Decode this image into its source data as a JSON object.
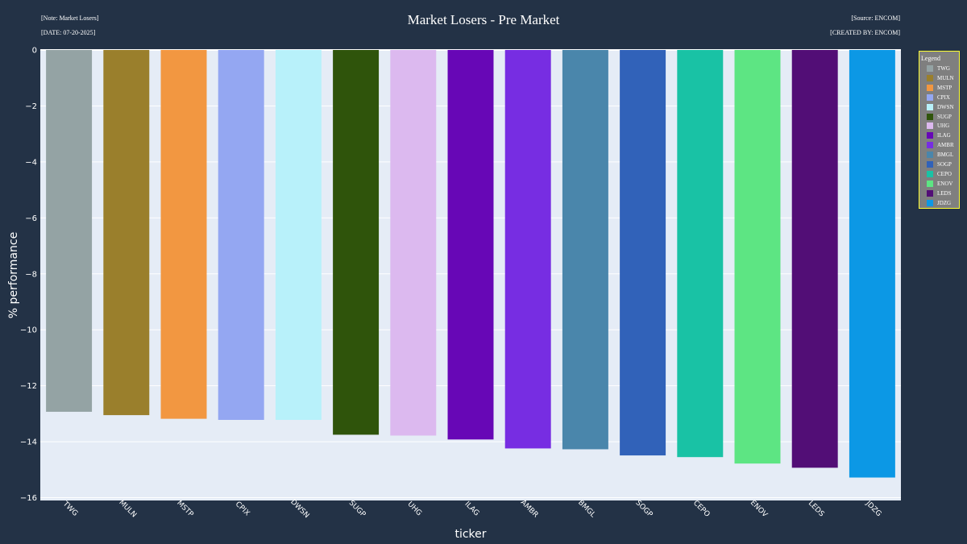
{
  "notes": {
    "top_left": "[Note: Market Losers]",
    "bottom_left": "[DATE: 07-20-2025]",
    "top_right": "[Source: ENCOM]",
    "bottom_right": "[CREATED BY: ENCOM]"
  },
  "legend": {
    "title": "Legend"
  },
  "colors": {
    "background": "#233246",
    "plot_background": "#e5ecf6",
    "legend_background": "#7f7f7f",
    "legend_border": "#ffff33"
  },
  "chart_data": {
    "type": "bar",
    "title": "Market Losers - Pre Market",
    "xlabel": "ticker",
    "ylabel": "% performance",
    "ylim": [
      -16.1,
      0
    ],
    "yticks": [
      0,
      -2,
      -4,
      -6,
      -8,
      -10,
      -12,
      -14,
      -16
    ],
    "grid": true,
    "legend_position": "right",
    "categories": [
      "TWG",
      "MULN",
      "MSTP",
      "CPIX",
      "DWSN",
      "SUGP",
      "UHG",
      "ILAG",
      "AMBR",
      "BMGL",
      "SOGP",
      "CEPO",
      "ENOV",
      "LEDS",
      "JDZG"
    ],
    "values": [
      -12.93,
      -13.05,
      -13.18,
      -13.22,
      -13.22,
      -13.75,
      -13.78,
      -13.92,
      -14.24,
      -14.27,
      -14.49,
      -14.55,
      -14.78,
      -14.93,
      -15.28
    ],
    "colors": [
      "#94a3a4",
      "#9a7f2c",
      "#f29741",
      "#94a7f2",
      "#b8f1fa",
      "#2f540b",
      "#dcb9ef",
      "#6707b6",
      "#772de2",
      "#4a86ab",
      "#3162b9",
      "#19c2a5",
      "#5de583",
      "#520e76",
      "#0c98e5"
    ]
  }
}
